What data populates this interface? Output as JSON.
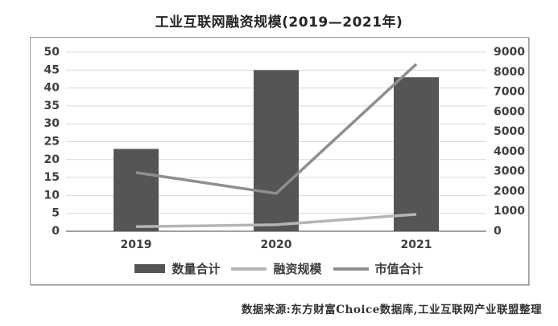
{
  "title": "工业互联网融资规模(2019—2021年)",
  "source_note": "数据来源:东方财富Choice数据库,工业互联网产业联盟整理",
  "colors": {
    "bar": "#555555",
    "line_financing": "#b5b5b5",
    "line_market": "#8e8e8e",
    "grid": "#d9d9d9",
    "axis": "#808080",
    "border": "#9a9a9a",
    "tick_text": "#404040"
  },
  "chart_data": {
    "type": "bar",
    "subtype": "bar+line combo, dual axis",
    "title": "工业互联网融资规模(2019—2021年)",
    "categories": [
      "2019",
      "2020",
      "2021"
    ],
    "series": [
      {
        "name": "数量合计",
        "type": "bar",
        "axis": "left",
        "values": [
          23,
          45,
          43
        ]
      },
      {
        "name": "融资规模",
        "type": "line",
        "axis": "right",
        "values": [
          230,
          330,
          850
        ]
      },
      {
        "name": "市值合计",
        "type": "line",
        "axis": "right",
        "values": [
          2950,
          1900,
          8400
        ]
      }
    ],
    "left_axis": {
      "min": 0,
      "max": 50,
      "step": 5,
      "ticks": [
        0,
        5,
        10,
        15,
        20,
        25,
        30,
        35,
        40,
        45,
        50
      ]
    },
    "right_axis": {
      "min": 0,
      "max": 9000,
      "step": 1000,
      "ticks": [
        0,
        1000,
        2000,
        3000,
        4000,
        5000,
        6000,
        7000,
        8000,
        9000
      ]
    },
    "xlabel": "",
    "ylabel": "",
    "grid": true,
    "legend_position": "bottom"
  },
  "legend": {
    "items": [
      {
        "label": "数量合计",
        "swatch": "bar"
      },
      {
        "label": "融资规模",
        "swatch": "line-light"
      },
      {
        "label": "市值合计",
        "swatch": "line-medium"
      }
    ]
  }
}
